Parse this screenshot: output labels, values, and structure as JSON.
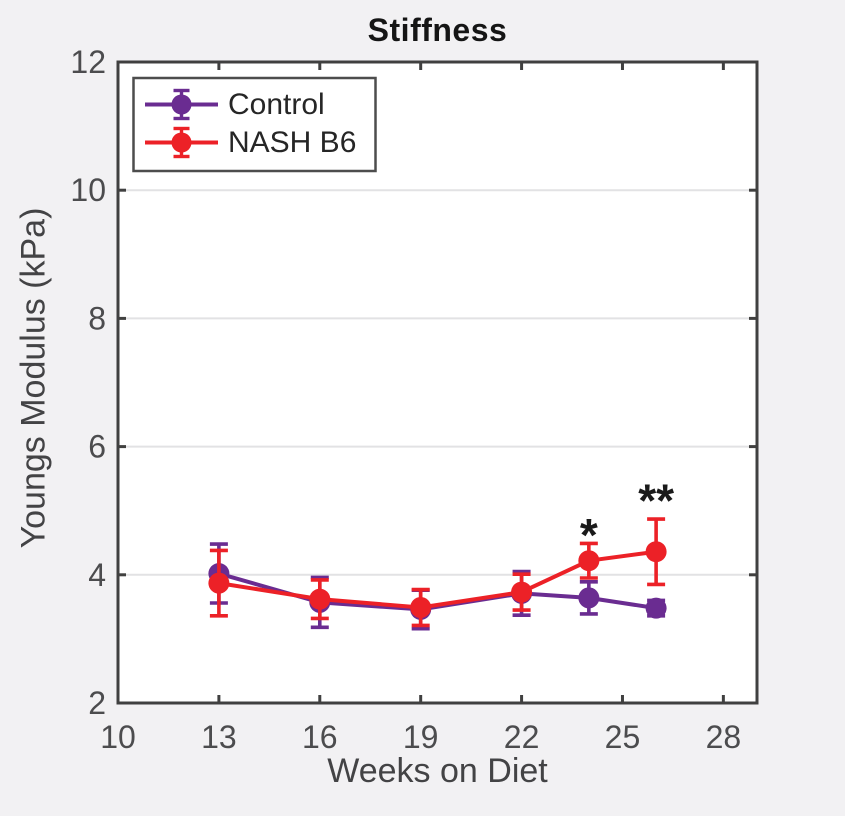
{
  "figure": {
    "background_color": "#F2F1F3",
    "plot_background_color": "#FFFFFF",
    "axis_color": "#404040",
    "grid_color": "#E2E2E4",
    "tick_label_color": "#4C4C4E",
    "annotation_color": "#1A1A1A",
    "legend_border_color": "#4D4D4D"
  },
  "chart_data": {
    "type": "line",
    "title": "Stiffness",
    "xlabel": "Weeks on Diet",
    "ylabel": "Youngs Modulus (kPa)",
    "xlim": [
      10,
      29
    ],
    "ylim": [
      2,
      12
    ],
    "xticks": [
      10,
      13,
      16,
      19,
      22,
      25,
      28
    ],
    "yticks": [
      2,
      4,
      6,
      8,
      10,
      12
    ],
    "grid": "horizontal",
    "legend_position": "top-left",
    "x": [
      13,
      16,
      19,
      22,
      24,
      26
    ],
    "series": [
      {
        "name": "Control",
        "color": "#6A2C91",
        "marker": "circle",
        "values": [
          4.02,
          3.57,
          3.46,
          3.71,
          3.64,
          3.48
        ],
        "errors": [
          0.46,
          0.39,
          0.3,
          0.34,
          0.25,
          0.12
        ]
      },
      {
        "name": "NASH B6",
        "color": "#EC2127",
        "marker": "circle",
        "values": [
          3.87,
          3.62,
          3.49,
          3.73,
          4.22,
          4.36
        ],
        "errors": [
          0.51,
          0.3,
          0.28,
          0.28,
          0.27,
          0.51
        ]
      }
    ],
    "annotations": [
      {
        "text": "*",
        "x": 24,
        "y": 4.81
      },
      {
        "text": "**",
        "x": 26,
        "y": 5.35
      }
    ]
  }
}
